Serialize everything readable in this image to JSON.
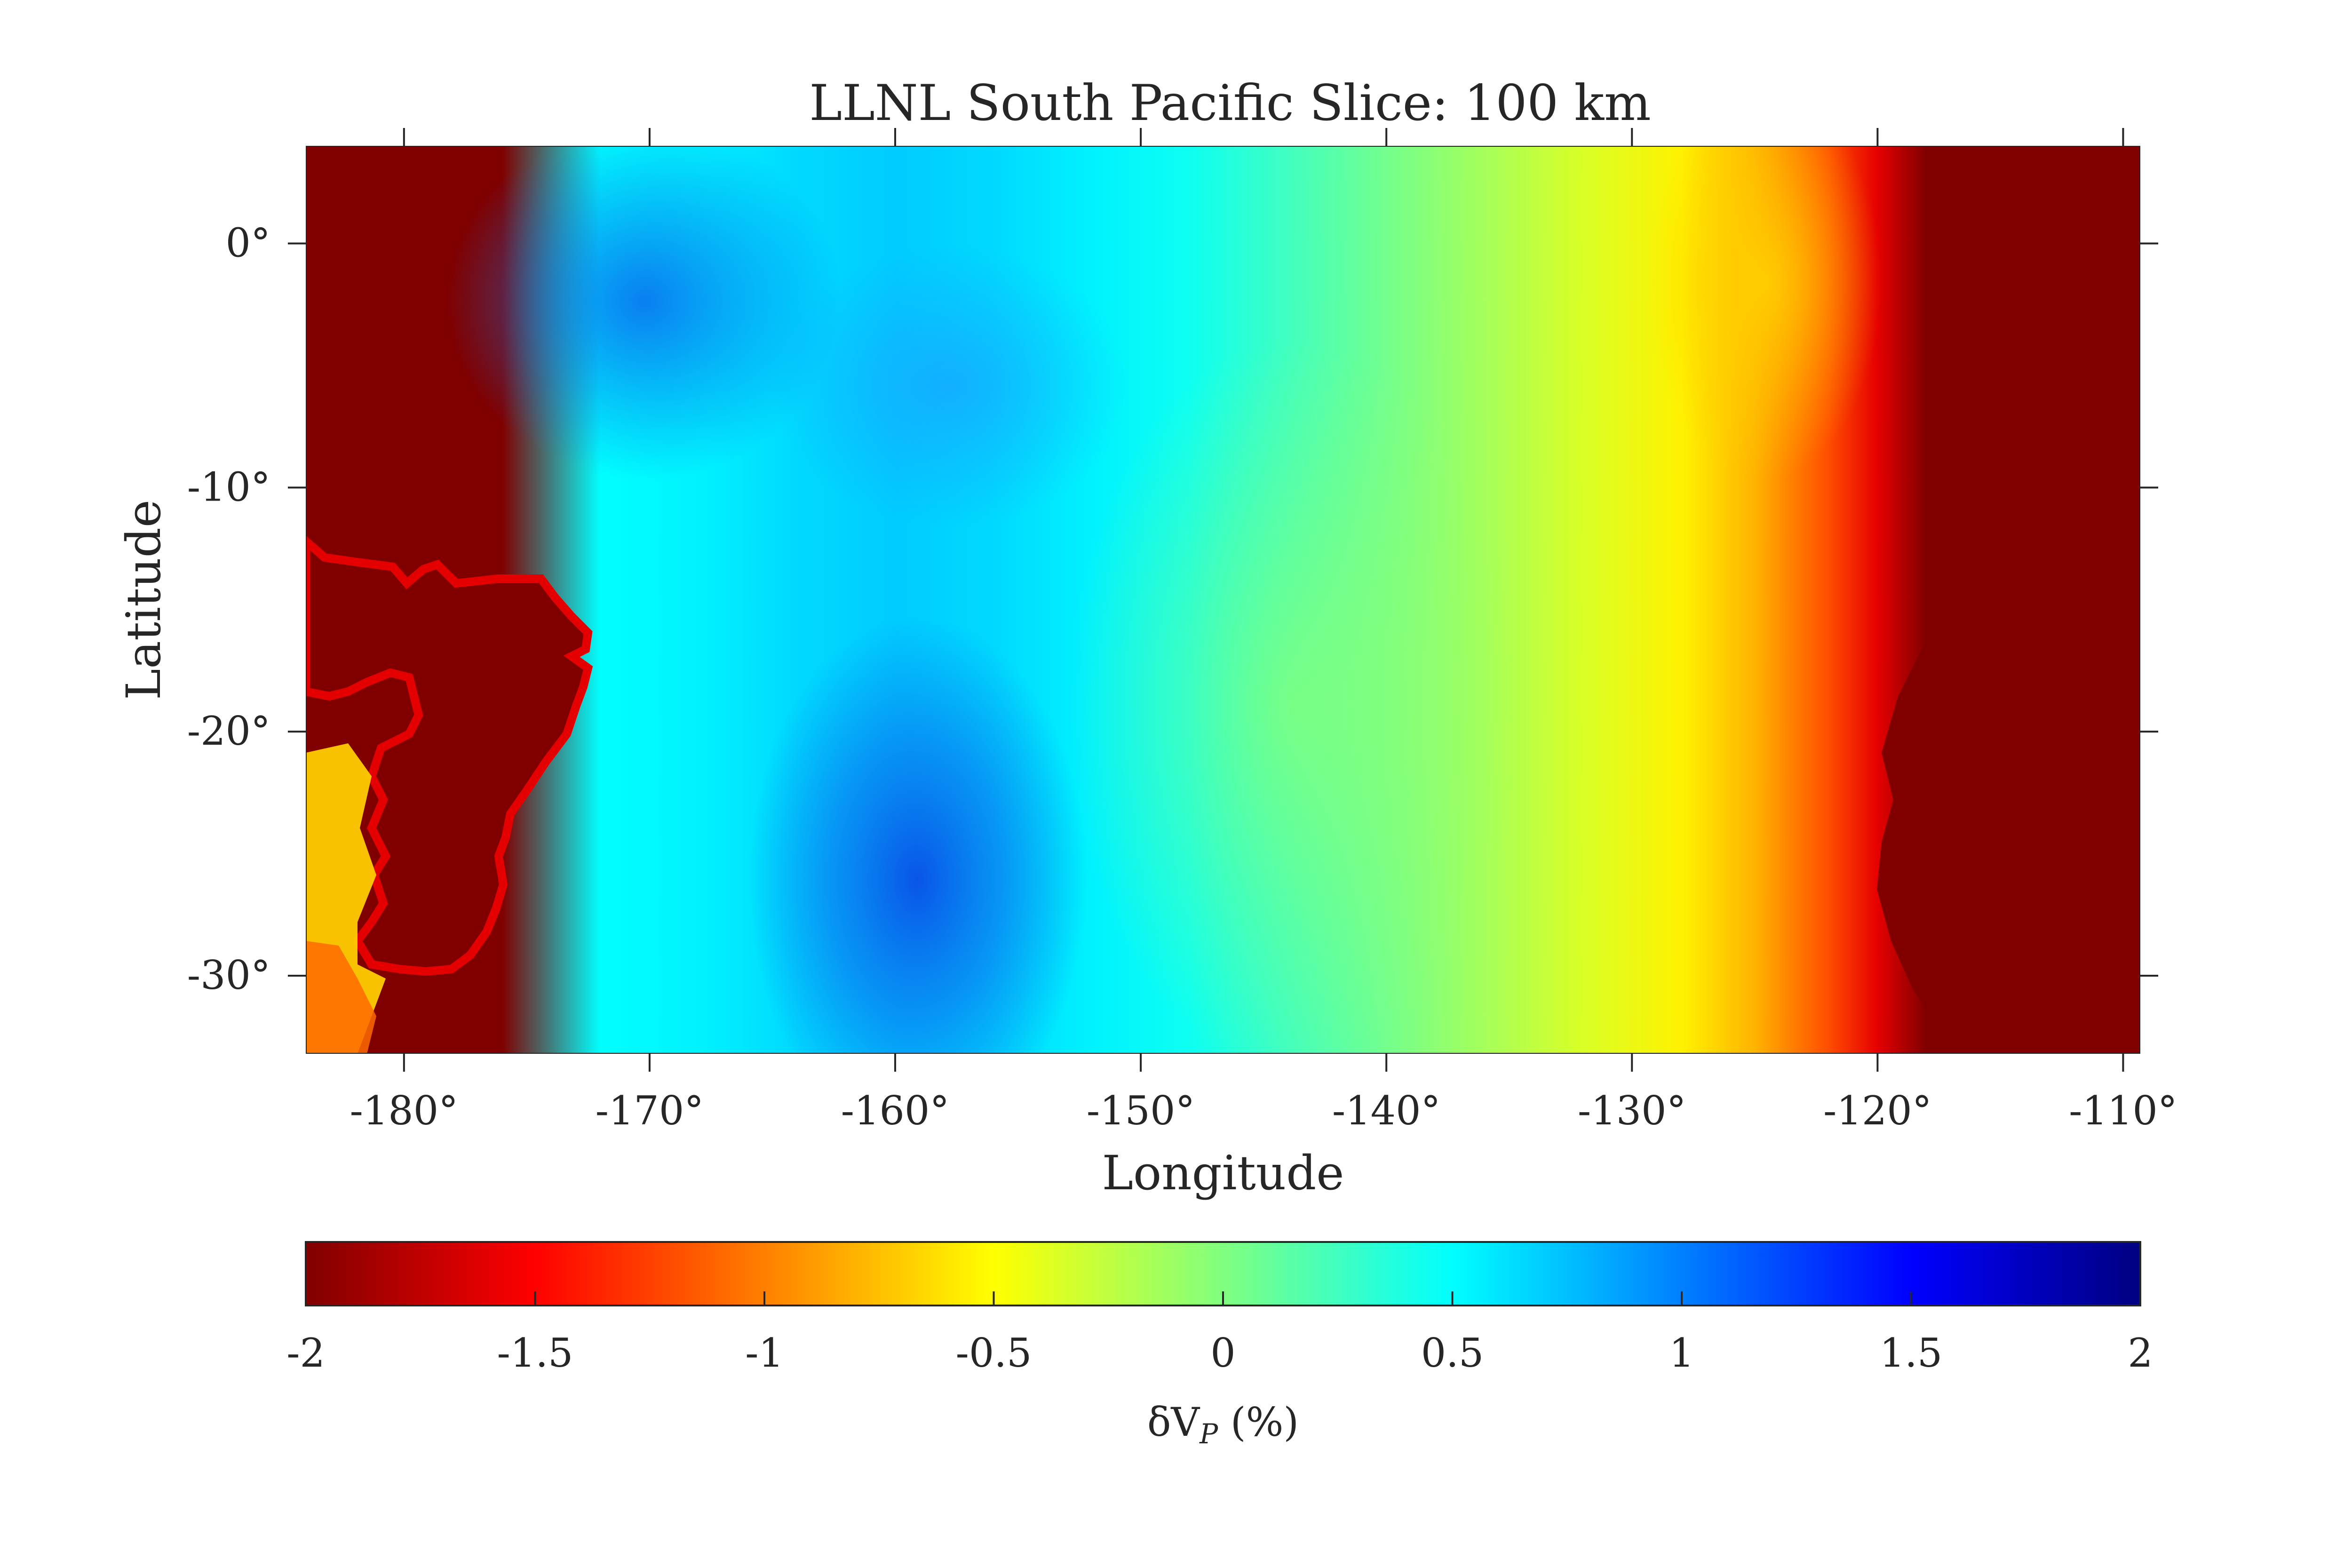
{
  "chart_data": {
    "type": "heatmap",
    "title": "LLNL South Pacific Slice: 100 km",
    "xlabel": "Longitude",
    "ylabel": "Latitude",
    "xlim": [
      -184,
      -109.3
    ],
    "ylim": [
      -33.2,
      4
    ],
    "x_ticks": [
      -180,
      -170,
      -160,
      -150,
      -140,
      -130,
      -120,
      -110
    ],
    "x_tick_labels": [
      "-180°",
      "-170°",
      "-160°",
      "-150°",
      "-140°",
      "-130°",
      "-120°",
      "-110°"
    ],
    "y_ticks": [
      0,
      -10,
      -20,
      -30
    ],
    "y_tick_labels": [
      "0°",
      "-10°",
      "-20°",
      "-30°"
    ],
    "grid": false,
    "colormap": "jet (reversed)",
    "colorbar": {
      "placement": "bottom",
      "label": "δV",
      "label_subscript": "P",
      "label_unit": " (%)",
      "range": [
        -2,
        2
      ],
      "ticks": [
        -2,
        -1.5,
        -1,
        -0.5,
        0,
        0.5,
        1,
        1.5,
        2
      ],
      "tick_labels": [
        "-2",
        "-1.5",
        "-1",
        "-0.5",
        "0",
        "0.5",
        "1",
        "1.5",
        "2"
      ],
      "colors": [
        "#800000",
        "#ff0000",
        "#ff8000",
        "#ffff00",
        "#80ff80",
        "#00ffff",
        "#0080ff",
        "#0000ff",
        "#000080"
      ]
    },
    "anomaly_profile_east_west": {
      "longitude": [
        -184,
        -176,
        -172,
        -168,
        -164,
        -160,
        -156,
        -152,
        -148,
        -144,
        -140,
        -136,
        -132,
        -128,
        -125,
        -122,
        -120,
        -118,
        -116,
        -112,
        -109.3
      ],
      "dvp_percent": [
        -2,
        -2,
        0.5,
        0.55,
        0.65,
        0.7,
        0.65,
        0.55,
        0.45,
        0.25,
        0.05,
        -0.15,
        -0.35,
        -0.55,
        -0.8,
        -1.2,
        -1.6,
        -2,
        -2,
        -2,
        -2
      ]
    }
  }
}
